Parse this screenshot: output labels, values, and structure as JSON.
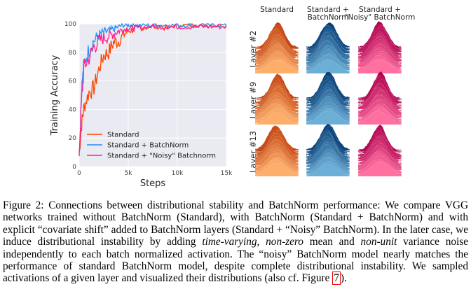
{
  "chart_data": {
    "type": "line",
    "xlabel": "Steps",
    "ylabel": "Training Accuracy",
    "xlim": [
      0,
      15000
    ],
    "ylim": [
      0,
      100
    ],
    "xticks": [
      0,
      5000,
      10000,
      15000
    ],
    "xtick_labels": [
      "0",
      "5k",
      "10k",
      "15k"
    ],
    "yticks": [
      0,
      20,
      40,
      60,
      80,
      100
    ],
    "ytick_labels": [
      "0",
      "20",
      "40",
      "60",
      "80",
      "100"
    ],
    "grid": true,
    "legend_position": "bottom-right",
    "x": [
      0,
      250,
      500,
      1000,
      1500,
      2000,
      2500,
      3000,
      3500,
      4000,
      4500,
      5000,
      5500,
      6000,
      7000,
      8000,
      9000,
      10000,
      11000,
      12000,
      13000,
      14000,
      15000
    ],
    "series": [
      {
        "name": "Standard",
        "color": "#ff4500",
        "values": [
          10,
          30,
          42,
          52,
          55,
          68,
          78,
          80,
          87,
          88,
          92,
          95,
          96,
          97,
          98,
          98,
          97,
          99,
          99,
          99,
          99,
          99,
          99
        ]
      },
      {
        "name": "Standard + BatchNorm",
        "color": "#1e90ff",
        "values": [
          8,
          55,
          72,
          82,
          88,
          92,
          94,
          95,
          96,
          98,
          99,
          99,
          99,
          99,
          99,
          99,
          99,
          99,
          99,
          99,
          99,
          99,
          99
        ]
      },
      {
        "name": "Standard + \"Noisy\" Batchnorm",
        "color": "#ff1f8f",
        "values": [
          10,
          48,
          70,
          76,
          84,
          88,
          90,
          91,
          93,
          95,
          96,
          97,
          97,
          97,
          98,
          98,
          98,
          98,
          98,
          98,
          98,
          98,
          98
        ]
      }
    ]
  },
  "ridges": {
    "columns": [
      "Standard",
      "Standard +\nBatchNorm",
      "Standard +\n\"Noisy\" BatchNorm"
    ],
    "column_lines": [
      [
        "Standard"
      ],
      [
        "Standard +",
        "BatchNorm"
      ],
      [
        "Standard +",
        "\"Noisy\" BatchNorm"
      ]
    ],
    "rows": [
      "Layer #2",
      "Layer #9",
      "Layer #13"
    ],
    "colors": [
      [
        "#fdae6b",
        "#c2410c"
      ],
      [
        "#6baed6",
        "#08417a"
      ],
      [
        "#ff6fa0",
        "#b0004e"
      ]
    ]
  },
  "caption": {
    "p1": "Figure 2: Connections between distributional stability and BatchNorm performance: We compare VGG networks trained without BatchNorm (Standard), with BatchNorm (Standard + BatchNorm) and with explicit “covariate shift” added to BatchNorm layers (Standard + “Noisy” BatchNorm). In the later case, we induce distributional instability by adding ",
    "i1": "time-varying",
    "p2": ", ",
    "i2": "non-zero",
    "p3": " mean and ",
    "i3": "non-unit",
    "p4": " variance noise independently to each batch normalized activation. The “noisy” BatchNorm model nearly matches the performance of standard BatchNorm model, despite complete distributional instability. We sampled activations of a given layer and visualized their distributions (also cf. Figure ",
    "ref": "7",
    "p5": ")."
  }
}
